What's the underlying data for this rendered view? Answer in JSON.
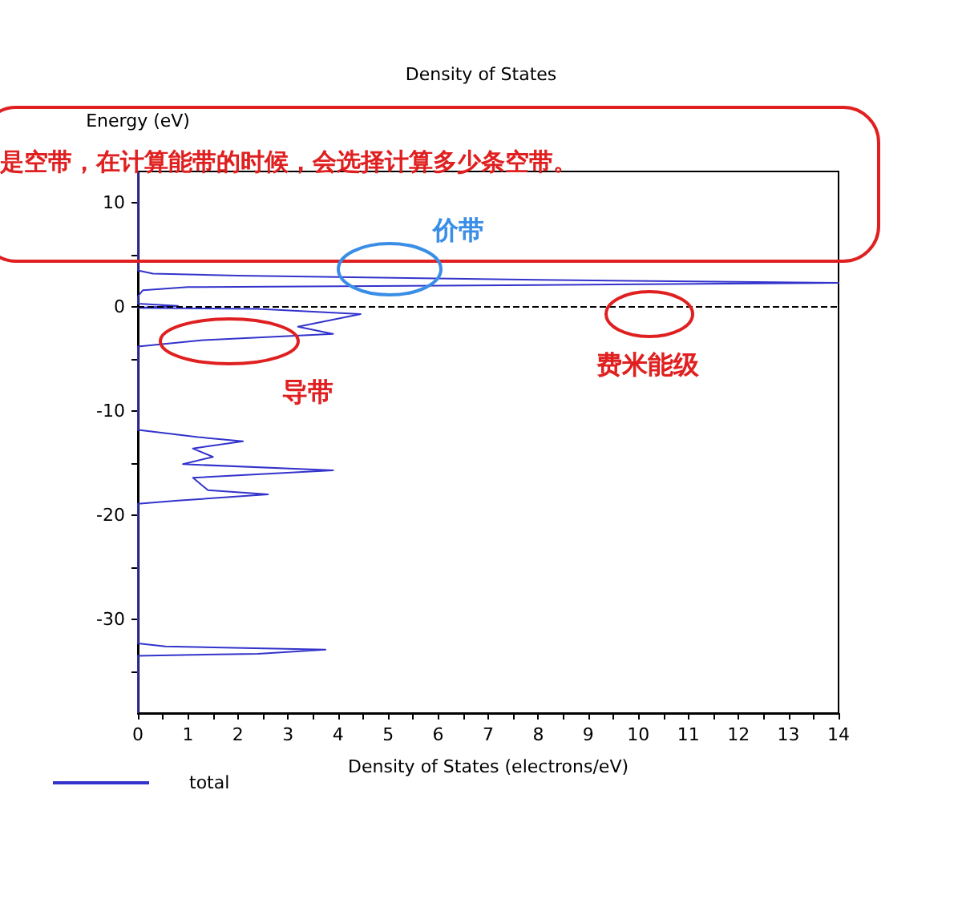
{
  "chart_data": {
    "type": "line",
    "title": "Density of States",
    "xlabel": "Density of States (electrons/eV)",
    "ylabel": "Energy (eV)",
    "annotations": [
      "是空带，在计算能带的时候，会选择计算多少条空带。",
      "价带",
      "导带",
      "费米能级"
    ],
    "series": [
      {
        "name": "total",
        "color": "#3333cc",
        "x": [
          0,
          0,
          0.3,
          2,
          8,
          14,
          8,
          1,
          0.1,
          0,
          0,
          0.8,
          0,
          2.4,
          4.45,
          3.2,
          3.9,
          1.3,
          0,
          0,
          1.2,
          2.1,
          1.1,
          1.5,
          0.9,
          3.9,
          1.1,
          1.4,
          2.6,
          0.8,
          0,
          0,
          0.55,
          3.75,
          2.4,
          0,
          0
        ],
        "values": [
          13,
          3.5,
          3.2,
          3.0,
          2.6,
          2.3,
          2.1,
          1.9,
          1.6,
          1.0,
          0.3,
          0.1,
          -0.1,
          -0.2,
          -0.7,
          -1.9,
          -2.6,
          -3.2,
          -3.8,
          -11.8,
          -12.5,
          -12.9,
          -13.6,
          -14.4,
          -15.1,
          -15.7,
          -16.4,
          -17.6,
          -18.0,
          -18.6,
          -18.9,
          -32.3,
          -32.6,
          -32.9,
          -33.3,
          -33.5,
          -39
        ]
      }
    ],
    "xlim": [
      0,
      14
    ],
    "xticks": [
      0,
      {
        "value": 0.5,
        "label": null
      },
      1,
      {
        "value": 1.5,
        "label": null
      },
      2,
      {
        "value": 2.5,
        "label": null
      },
      3,
      {
        "value": 3.5,
        "label": null
      },
      4,
      {
        "value": 4.5,
        "label": null
      },
      5,
      {
        "value": 5.5,
        "label": null
      },
      6,
      {
        "value": 6.5,
        "label": null
      },
      7,
      {
        "value": 7.5,
        "label": null
      },
      8,
      {
        "value": 8.5,
        "label": null
      },
      9,
      {
        "value": 9.5,
        "label": null
      },
      10,
      {
        "value": 10.5,
        "label": null
      },
      11,
      {
        "value": 11.5,
        "label": null
      },
      12,
      {
        "value": 12.5,
        "label": null
      },
      13,
      {
        "value": 13.5,
        "label": null
      },
      14
    ],
    "ylim": [
      -39,
      13
    ],
    "yticks": [
      {
        "value": -35,
        "label": null
      },
      -30,
      {
        "value": -25,
        "label": null
      },
      -20,
      {
        "value": -15,
        "label": null
      },
      -10,
      {
        "value": -5,
        "label": null
      },
      0,
      {
        "value": 5,
        "label": null
      },
      10
    ],
    "ref_lines": [
      {
        "axis": "y",
        "value": 0,
        "label": null,
        "color": "#000000",
        "line_style": "dashed"
      }
    ],
    "grid": false,
    "legend": "bottom left",
    "marker": "none",
    "line_style": "solid"
  }
}
